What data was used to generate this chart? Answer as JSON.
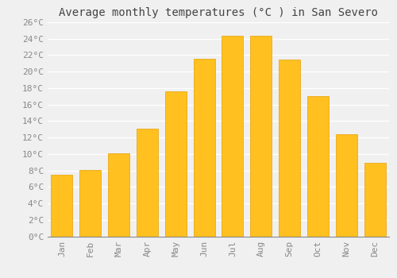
{
  "title": "Average monthly temperatures (°C ) in San Severo",
  "months": [
    "Jan",
    "Feb",
    "Mar",
    "Apr",
    "May",
    "Jun",
    "Jul",
    "Aug",
    "Sep",
    "Oct",
    "Nov",
    "Dec"
  ],
  "values": [
    7.5,
    8.1,
    10.1,
    13.1,
    17.6,
    21.6,
    24.4,
    24.4,
    21.5,
    17.0,
    12.4,
    8.9
  ],
  "bar_color": "#FFC020",
  "bar_edge_color": "#E8A000",
  "background_color": "#F0F0F0",
  "grid_color": "#FFFFFF",
  "ylim": [
    0,
    26
  ],
  "ytick_step": 2,
  "title_fontsize": 10,
  "tick_fontsize": 8,
  "font_family": "monospace",
  "tick_color": "#888888",
  "title_color": "#444444"
}
